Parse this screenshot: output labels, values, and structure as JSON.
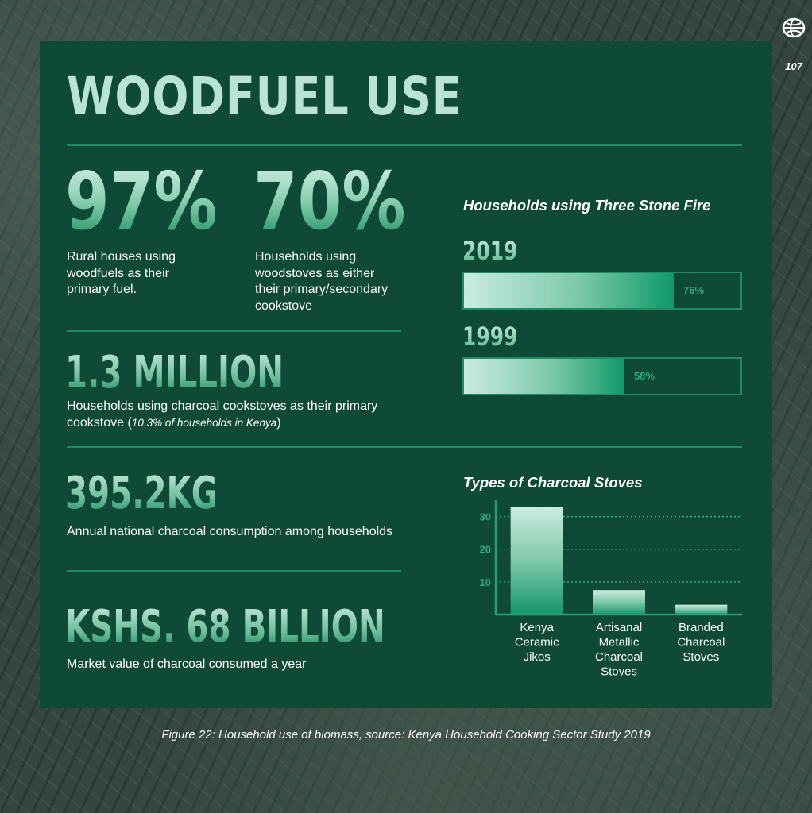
{
  "page_number": "107",
  "title": "WOODFUEL USE",
  "stats": {
    "rural": {
      "value": "97%",
      "desc_lines": [
        "Rural houses using",
        "woodfuels as their",
        "primary fuel."
      ]
    },
    "woodstoves": {
      "value": "70%",
      "desc_lines": [
        "Households using",
        "woodstoves as either",
        "their primary/secondary",
        "cookstove"
      ]
    },
    "charcoal_households": {
      "value": "1.3 MILLION",
      "desc_line1": "Households using charcoal cookstoves as their primary",
      "desc_line2_main": "cookstove (",
      "desc_line2_italic": "10.3% of households in Kenya",
      "desc_line2_end": ")"
    },
    "consumption": {
      "value": "395.2KG",
      "desc": "Annual national charcoal consumption among households"
    },
    "market": {
      "value": "KSHS. 68 BILLION",
      "desc": "Market value of charcoal consumed a year"
    }
  },
  "three_stone": {
    "title": "Households using Three Stone Fire",
    "bars": [
      {
        "year": "2019",
        "value": 76,
        "label": "76%"
      },
      {
        "year": "1999",
        "value": 58,
        "label": "58%"
      }
    ]
  },
  "chart_data": {
    "type": "bar",
    "title": "Types of Charcoal Stoves",
    "categories": [
      [
        "Kenya",
        "Ceramic",
        "Jikos"
      ],
      [
        "Artisanal",
        "Metallic",
        "Charcoal",
        "Stoves"
      ],
      [
        "Branded",
        "Charcoal",
        "Stoves"
      ]
    ],
    "values": [
      33,
      7.5,
      3
    ],
    "yticks": [
      10,
      20,
      30
    ],
    "ylim": [
      0,
      35
    ],
    "grid": "dotted horizontal",
    "xlabel": "",
    "ylabel": ""
  },
  "caption": "Figure 22: Household use of biomass, source: Kenya Household Cooking Sector Study 2019",
  "colors": {
    "panel": "#0f4a37",
    "accent": "#1f8a63",
    "bar_light": "#c9ebe0",
    "bar_dark": "#0f9a69"
  }
}
